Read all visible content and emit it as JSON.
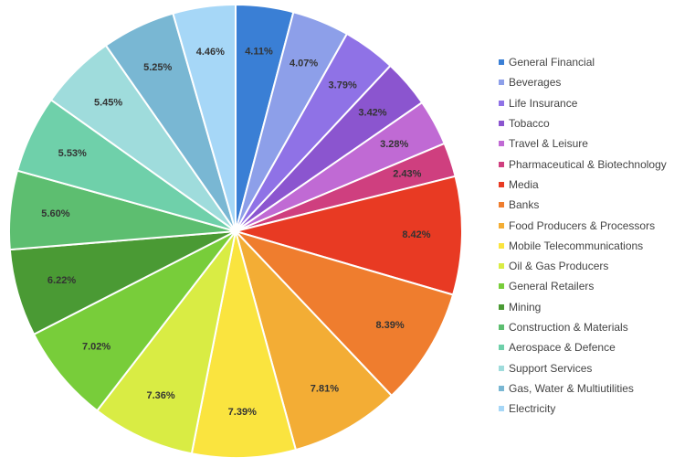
{
  "chart_data": {
    "type": "pie",
    "legend_position": "right",
    "slices": [
      {
        "name": "General Financial",
        "value": 4.11,
        "label": "4.11%",
        "color": "#3a7fd5"
      },
      {
        "name": "Beverages",
        "value": 4.07,
        "label": "4.07%",
        "color": "#8d9fe9"
      },
      {
        "name": "Life Insurance",
        "value": 3.79,
        "label": "3.79%",
        "color": "#8f72e6"
      },
      {
        "name": "Tobacco",
        "value": 3.42,
        "label": "3.42%",
        "color": "#8b55cf"
      },
      {
        "name": "Travel & Leisure",
        "value": 3.28,
        "label": "3.28%",
        "color": "#c06ad4"
      },
      {
        "name": "Pharmaceutical & Biotechnology",
        "value": 2.43,
        "label": "2.43%",
        "color": "#cf3f7f"
      },
      {
        "name": "Media",
        "value": 8.42,
        "label": "8.42%",
        "color": "#e83a23"
      },
      {
        "name": "Banks",
        "value": 8.39,
        "label": "8.39%",
        "color": "#ef7d2e"
      },
      {
        "name": "Food Producers & Processors",
        "value": 7.81,
        "label": "7.81%",
        "color": "#f3ad35"
      },
      {
        "name": "Mobile Telecommunications",
        "value": 7.39,
        "label": "7.39%",
        "color": "#fae43f"
      },
      {
        "name": "Oil & Gas Producers",
        "value": 7.36,
        "label": "7.36%",
        "color": "#d9ec44"
      },
      {
        "name": "General Retailers",
        "value": 7.02,
        "label": "7.02%",
        "color": "#78cd3a"
      },
      {
        "name": "Mining",
        "value": 6.22,
        "label": "6.22%",
        "color": "#4a9a34"
      },
      {
        "name": "Construction & Materials",
        "value": 5.6,
        "label": "5.60%",
        "color": "#5dbe70"
      },
      {
        "name": "Aerospace & Defence",
        "value": 5.53,
        "label": "5.53%",
        "color": "#6fd0aa"
      },
      {
        "name": "Support Services",
        "value": 5.45,
        "label": "5.45%",
        "color": "#9fdcdc"
      },
      {
        "name": "Gas, Water & Multiutilities",
        "value": 5.25,
        "label": "5.25%",
        "color": "#79b7d3"
      },
      {
        "name": "Electricity",
        "value": 4.46,
        "label": "4.46%",
        "color": "#a6d7f7"
      }
    ]
  }
}
